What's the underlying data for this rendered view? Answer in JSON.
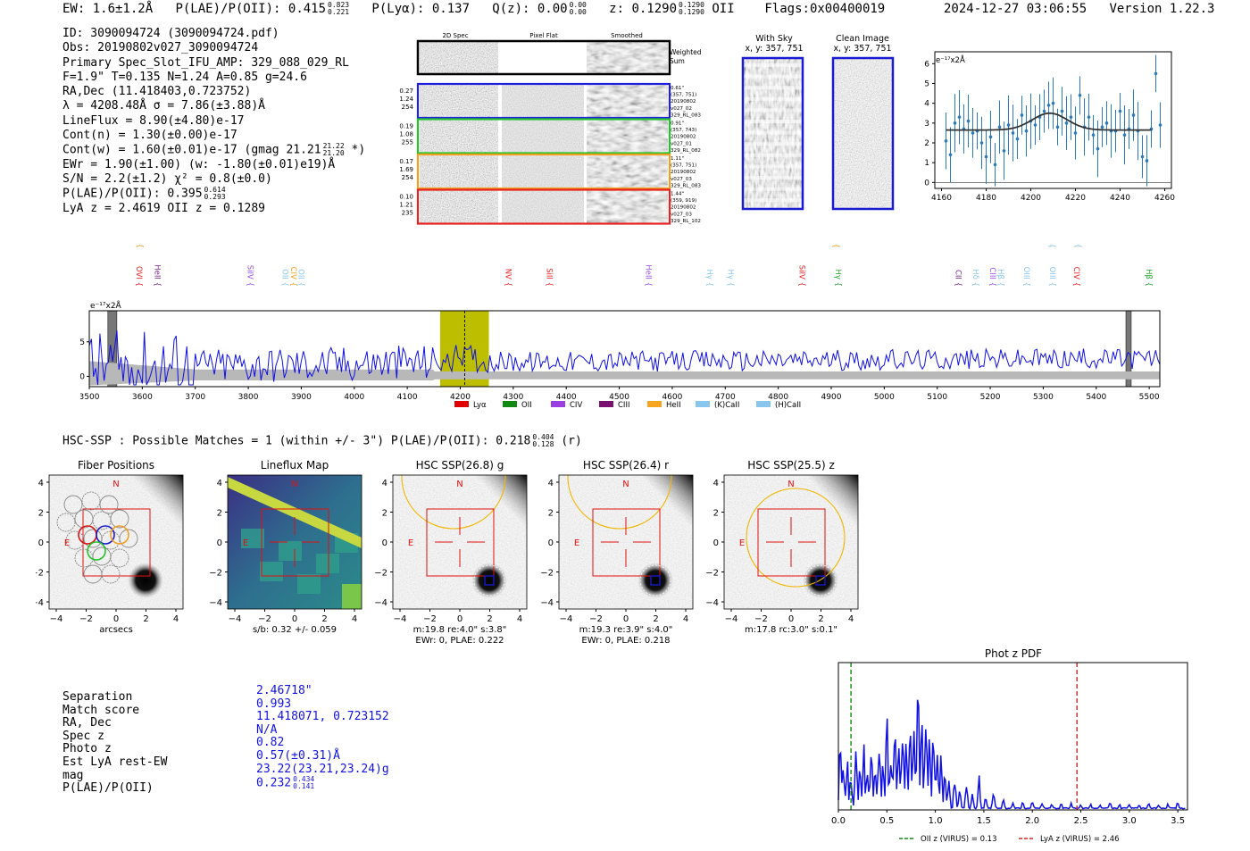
{
  "header": {
    "ew": "EW: 1.6±1.2Å",
    "plae_label": "P(LAE)/P(OII): 0.415",
    "plae_hi": "0.823",
    "plae_lo": "0.221",
    "plya": "P(Lyα): 0.137",
    "qz_label": "Q(z): 0.00",
    "qz_hi": "0.00",
    "qz_lo": "0.00",
    "z_label": "z: 0.1290",
    "z_hi": "0.1290",
    "z_lo": "0.1290",
    "z_line": "OII",
    "flags": "Flags:0x00400019",
    "datetime": "2024-12-27 03:06:55",
    "version": "Version 1.22.3"
  },
  "info": {
    "id": "ID: 3090094724 (3090094724.pdf)",
    "obs": "Obs: 20190802v027_3090094724",
    "primary": "Primary Spec_Slot_IFU_AMP: 329_088_029_RL",
    "fiber": "F=1.9\"  T=0.135  N=1.24  A=0.85  g=24.6",
    "radec": "RA,Dec (11.418403,0.723752)",
    "lambda": "λ = 4208.48Å  σ = 7.86(±3.88)Å",
    "lineflux": "LineFlux = 8.90(±4.80)e-17",
    "contn": "Cont(n) = 1.30(±0.00)e-17",
    "contw": "Cont(w) = 1.60(±0.01)e-17 (gmag 21.21",
    "contw_hi": "21.22",
    "contw_lo": "21.20",
    "contw_end": "*)",
    "ewr": "EWr = 1.90(±1.00) (w: -1.80(±0.01)e19)Å",
    "sn": "S/N = 2.2(±1.2)  χ² = 0.8(±0.0)",
    "plae": "P(LAE)/P(OII): 0.395",
    "plae_hi": "0.614",
    "plae_lo": "0.293",
    "lyaz": "LyA z = 2.4619  OII z = 0.1289"
  },
  "cutouts": {
    "col_2d": "2D Spec",
    "col_flat": "Pixel Flat",
    "col_smooth": "Smoothed",
    "weighted": "Weighted",
    "sum": "Sum",
    "rows": [
      {
        "stats": [
          "0.27",
          "1.24",
          "254"
        ],
        "meta": [
          "0.61\"",
          "(357, 751)",
          "20190802",
          "v027_02",
          "329_RL_083"
        ],
        "color": "#1f1fe0"
      },
      {
        "stats": [
          "0.19",
          "1.08",
          "255"
        ],
        "meta": [
          "0.91\"",
          "(357, 743)",
          "20190802",
          "v027_01",
          "329_RL_082"
        ],
        "color": "#22c32b"
      },
      {
        "stats": [
          "0.17",
          "1.69",
          "254"
        ],
        "meta": [
          "1.11\"",
          "(357, 751)",
          "20190802",
          "v027_03",
          "329_RL_083"
        ],
        "color": "#f0a020"
      },
      {
        "stats": [
          "0.10",
          "1.21",
          "235"
        ],
        "meta": [
          "1.44\"",
          "(359, 919)",
          "20190802",
          "v027_03",
          "329_RL_102"
        ],
        "color": "#e82020"
      }
    ]
  },
  "sky": {
    "with_sky": "With Sky",
    "clean": "Clean Image",
    "coords": "x, y: 357, 751"
  },
  "zoom_chart": {
    "ylabel": "e⁻¹⁷x2Å",
    "x_ticks": [
      "4160",
      "4180",
      "4200",
      "4220",
      "4240",
      "4260"
    ],
    "y_ticks": [
      "0",
      "1",
      "2",
      "3",
      "4",
      "5",
      "6"
    ],
    "xlim": [
      4157,
      4263
    ],
    "ylim": [
      -0.3,
      6.6
    ],
    "fit": {
      "center": 4208.48,
      "sigma": 7.86,
      "base": 2.65,
      "amp": 0.85,
      "x0": 4162,
      "x1": 4254
    },
    "points": [
      [
        4162,
        2.1
      ],
      [
        4164,
        1.4
      ],
      [
        4166,
        3.0
      ],
      [
        4168,
        3.3
      ],
      [
        4170,
        2.7
      ],
      [
        4172,
        3.1
      ],
      [
        4174,
        2.5
      ],
      [
        4176,
        2.6
      ],
      [
        4178,
        2.0
      ],
      [
        4180,
        1.3
      ],
      [
        4182,
        2.3
      ],
      [
        4184,
        0.9
      ],
      [
        4186,
        2.8
      ],
      [
        4188,
        1.6
      ],
      [
        4190,
        2.9
      ],
      [
        4192,
        2.5
      ],
      [
        4194,
        2.2
      ],
      [
        4196,
        3.4
      ],
      [
        4198,
        2.6
      ],
      [
        4200,
        3.1
      ],
      [
        4202,
        2.9
      ],
      [
        4204,
        3.3
      ],
      [
        4206,
        3.6
      ],
      [
        4208,
        3.9
      ],
      [
        4210,
        4.0
      ],
      [
        4212,
        2.8
      ],
      [
        4214,
        3.6
      ],
      [
        4216,
        3.0
      ],
      [
        4218,
        3.3
      ],
      [
        4220,
        2.5
      ],
      [
        4222,
        4.4
      ],
      [
        4224,
        2.8
      ],
      [
        4226,
        3.3
      ],
      [
        4228,
        2.4
      ],
      [
        4230,
        1.7
      ],
      [
        4232,
        2.8
      ],
      [
        4234,
        3.0
      ],
      [
        4236,
        2.6
      ],
      [
        4238,
        2.6
      ],
      [
        4240,
        3.6
      ],
      [
        4242,
        2.4
      ],
      [
        4244,
        2.7
      ],
      [
        4246,
        3.4
      ],
      [
        4248,
        2.6
      ],
      [
        4250,
        1.3
      ],
      [
        4252,
        1.1
      ],
      [
        4254,
        2.7
      ],
      [
        4256,
        5.5
      ],
      [
        4258,
        2.9
      ]
    ]
  },
  "spectrum": {
    "ylabel": "e⁻¹⁷x2Å",
    "x_ticks": [
      "3500",
      "3600",
      "3700",
      "3800",
      "3900",
      "4000",
      "4100",
      "4200",
      "4300",
      "4400",
      "4500",
      "4600",
      "4700",
      "4800",
      "4900",
      "5000",
      "5100",
      "5200",
      "5300",
      "5400",
      "5500"
    ],
    "y_ticks": [
      "0",
      "5"
    ],
    "xlim": [
      3500,
      5520
    ],
    "ylim": [
      -1.5,
      9.5
    ],
    "highlight": [
      4162,
      4254
    ],
    "marker": 4208.48,
    "mask_bands": [
      [
        3535,
        3552
      ],
      [
        5456,
        5466
      ]
    ],
    "lines_upper": [
      {
        "label": "SiIV {",
        "x": 3586,
        "color": "#f0a020"
      },
      {
        "label": "CIII {",
        "x": 4899,
        "color": "#f0a020"
      },
      {
        "label": "OIII {",
        "x": 5307,
        "color": "#88c6ee"
      },
      {
        "label": "OIII {",
        "x": 5356,
        "color": "#88c6ee"
      }
    ],
    "lines_lower": [
      {
        "label": "OVI {",
        "x": 3584,
        "color": "#e82020"
      },
      {
        "label": "HeII {",
        "x": 3619,
        "color": "#7a1f8a"
      },
      {
        "label": "SiIV {",
        "x": 3794,
        "color": "#9b4fe0"
      },
      {
        "label": "OII {",
        "x": 3860,
        "color": "#88c6ee"
      },
      {
        "label": "CIV {",
        "x": 3876,
        "color": "#f0a020"
      },
      {
        "label": "OII {",
        "x": 3890,
        "color": "#88c6ee"
      },
      {
        "label": "NV {",
        "x": 4281,
        "color": "#e82020"
      },
      {
        "label": "SiII {",
        "x": 4358,
        "color": "#e82020"
      },
      {
        "label": "HeII {",
        "x": 4545,
        "color": "#9b4fe0"
      },
      {
        "label": "Hγ {",
        "x": 4661,
        "color": "#88c6ee"
      },
      {
        "label": "Hγ {",
        "x": 4700,
        "color": "#88c6ee"
      },
      {
        "label": "SiIV {",
        "x": 4835,
        "color": "#e82020"
      },
      {
        "label": "Hγ {",
        "x": 4903,
        "color": "#22a02b"
      },
      {
        "label": "CII {",
        "x": 5130,
        "color": "#7a1f8a"
      },
      {
        "label": "Hδ {",
        "x": 5163,
        "color": "#88c6ee"
      },
      {
        "label": "CIII {",
        "x": 5195,
        "color": "#9b4fe0"
      },
      {
        "label": "Hβ {",
        "x": 5210,
        "color": "#88c6ee"
      },
      {
        "label": "OIII {",
        "x": 5259,
        "color": "#88c6ee"
      },
      {
        "label": "OIII {",
        "x": 5308,
        "color": "#88c6ee"
      },
      {
        "label": "CIV {",
        "x": 5353,
        "color": "#e82020"
      },
      {
        "label": "Hβ {",
        "x": 5490,
        "color": "#22a02b"
      }
    ],
    "legend": [
      {
        "label": "Lyα",
        "color": "#e00000"
      },
      {
        "label": "OII",
        "color": "#118811"
      },
      {
        "label": "CIV",
        "color": "#9b3fe0"
      },
      {
        "label": "CIII",
        "color": "#7a1070"
      },
      {
        "label": "HeII",
        "color": "#f5a520"
      },
      {
        "label": "(K)CaII",
        "color": "#88c6ee"
      },
      {
        "label": "(H)CaII",
        "color": "#88c6ee"
      }
    ]
  },
  "hsc": {
    "title": "HSC-SSP : Possible Matches = 1 (within +/- 3\")  P(LAE)/P(OII): 0.218",
    "plae_hi": "0.404",
    "plae_lo": "0.128",
    "band": "(r)",
    "panels": [
      {
        "title": "Fiber Positions",
        "cap1": "arcsecs",
        "cap2": ""
      },
      {
        "title": "Lineflux Map",
        "cap1": "s/b: 0.32 +/- 0.059",
        "cap2": ""
      },
      {
        "title": "HSC SSP(26.8) g",
        "cap1": "m:19.8  re:4.0\"  s:3.8\"",
        "cap2": "EWr: 0, PLAE: 0.222"
      },
      {
        "title": "HSC SSP(26.4) r",
        "cap1": "m:19.3  re:3.9\"  s:4.0\"",
        "cap2": "EWr: 0, PLAE: 0.218"
      },
      {
        "title": "HSC SSP(25.5) z",
        "cap1": "m:17.8 rc:3.0\"  s:0.1\"",
        "cap2": ""
      }
    ],
    "axis_ticks": [
      "−4",
      "−2",
      "0",
      "2",
      "4"
    ],
    "north": "N",
    "east": "E"
  },
  "match": {
    "labels": [
      "Separation",
      "Match score",
      "RA, Dec",
      "Spec z",
      "Photo z",
      "Est LyA rest-EW",
      "mag",
      "P(LAE)/P(OII)"
    ],
    "values": [
      "2.46718\"",
      "0.993",
      "11.418071, 0.723152",
      "N/A",
      "0.82",
      "0.57(±0.31)Å",
      "23.22(23.21,23.24)g",
      "0.232"
    ],
    "plae_hi": "0.434",
    "plae_lo": "0.141"
  },
  "photz": {
    "title": "Phot z PDF",
    "x_ticks": [
      "0.0",
      "0.5",
      "1.0",
      "1.5",
      "2.0",
      "2.5",
      "3.0",
      "3.5"
    ],
    "xlim": [
      0.0,
      3.6
    ],
    "oii_z": 0.13,
    "lya_z": 2.46,
    "legend_oii": "OII z (VIRUS) = 0.13",
    "legend_lya": "LyA z (VIRUS) = 2.46",
    "peaks": [
      [
        0.02,
        0.55
      ],
      [
        0.05,
        0.35
      ],
      [
        0.09,
        0.4
      ],
      [
        0.13,
        0.3
      ],
      [
        0.18,
        0.45
      ],
      [
        0.22,
        0.3
      ],
      [
        0.26,
        0.5
      ],
      [
        0.3,
        0.35
      ],
      [
        0.34,
        0.55
      ],
      [
        0.38,
        0.38
      ],
      [
        0.42,
        0.62
      ],
      [
        0.46,
        0.42
      ],
      [
        0.5,
        0.7
      ],
      [
        0.54,
        0.5
      ],
      [
        0.58,
        0.78
      ],
      [
        0.62,
        0.55
      ],
      [
        0.66,
        0.72
      ],
      [
        0.7,
        0.6
      ],
      [
        0.74,
        0.78
      ],
      [
        0.78,
        0.65
      ],
      [
        0.82,
        0.98
      ],
      [
        0.86,
        0.7
      ],
      [
        0.9,
        0.82
      ],
      [
        0.94,
        0.6
      ],
      [
        0.98,
        0.72
      ],
      [
        1.02,
        0.5
      ],
      [
        1.06,
        0.42
      ],
      [
        1.1,
        0.3
      ],
      [
        1.14,
        0.22
      ],
      [
        1.2,
        0.28
      ],
      [
        1.25,
        0.15
      ],
      [
        1.32,
        0.2
      ],
      [
        1.38,
        0.12
      ],
      [
        1.45,
        0.25
      ],
      [
        1.52,
        0.1
      ],
      [
        1.6,
        0.14
      ],
      [
        1.7,
        0.08
      ],
      [
        1.8,
        0.07
      ],
      [
        1.9,
        0.06
      ],
      [
        2.0,
        0.08
      ],
      [
        2.1,
        0.05
      ],
      [
        2.2,
        0.06
      ],
      [
        2.3,
        0.05
      ],
      [
        2.4,
        0.05
      ],
      [
        2.5,
        0.04
      ],
      [
        2.6,
        0.05
      ],
      [
        2.7,
        0.04
      ],
      [
        2.8,
        0.06
      ],
      [
        2.9,
        0.04
      ],
      [
        3.0,
        0.05
      ],
      [
        3.1,
        0.04
      ],
      [
        3.2,
        0.06
      ],
      [
        3.3,
        0.05
      ],
      [
        3.4,
        0.05
      ],
      [
        3.5,
        0.06
      ]
    ]
  },
  "chart_data": [
    {
      "type": "scatter",
      "title": "Line zoom",
      "xlabel": "",
      "ylabel": "e⁻¹⁷x2Å",
      "xlim": [
        4157,
        4263
      ],
      "ylim": [
        -0.3,
        6.6
      ],
      "series": [
        {
          "name": "flux",
          "points": "zoom_chart.points"
        }
      ]
    },
    {
      "type": "line",
      "title": "Full spectrum",
      "xlabel": "",
      "ylabel": "e⁻¹⁷x2Å",
      "xlim": [
        3500,
        5520
      ],
      "ylim": [
        -1.5,
        9.5
      ],
      "legend": [
        "Lyα",
        "OII",
        "CIV",
        "CIII",
        "HeII",
        "(K)CaII",
        "(H)CaII"
      ]
    },
    {
      "type": "line",
      "title": "Phot z PDF",
      "xlim": [
        0.0,
        3.6
      ],
      "series": [
        {
          "name": "OII z (VIRUS) = 0.13"
        },
        {
          "name": "LyA z (VIRUS) = 2.46"
        }
      ]
    }
  ]
}
